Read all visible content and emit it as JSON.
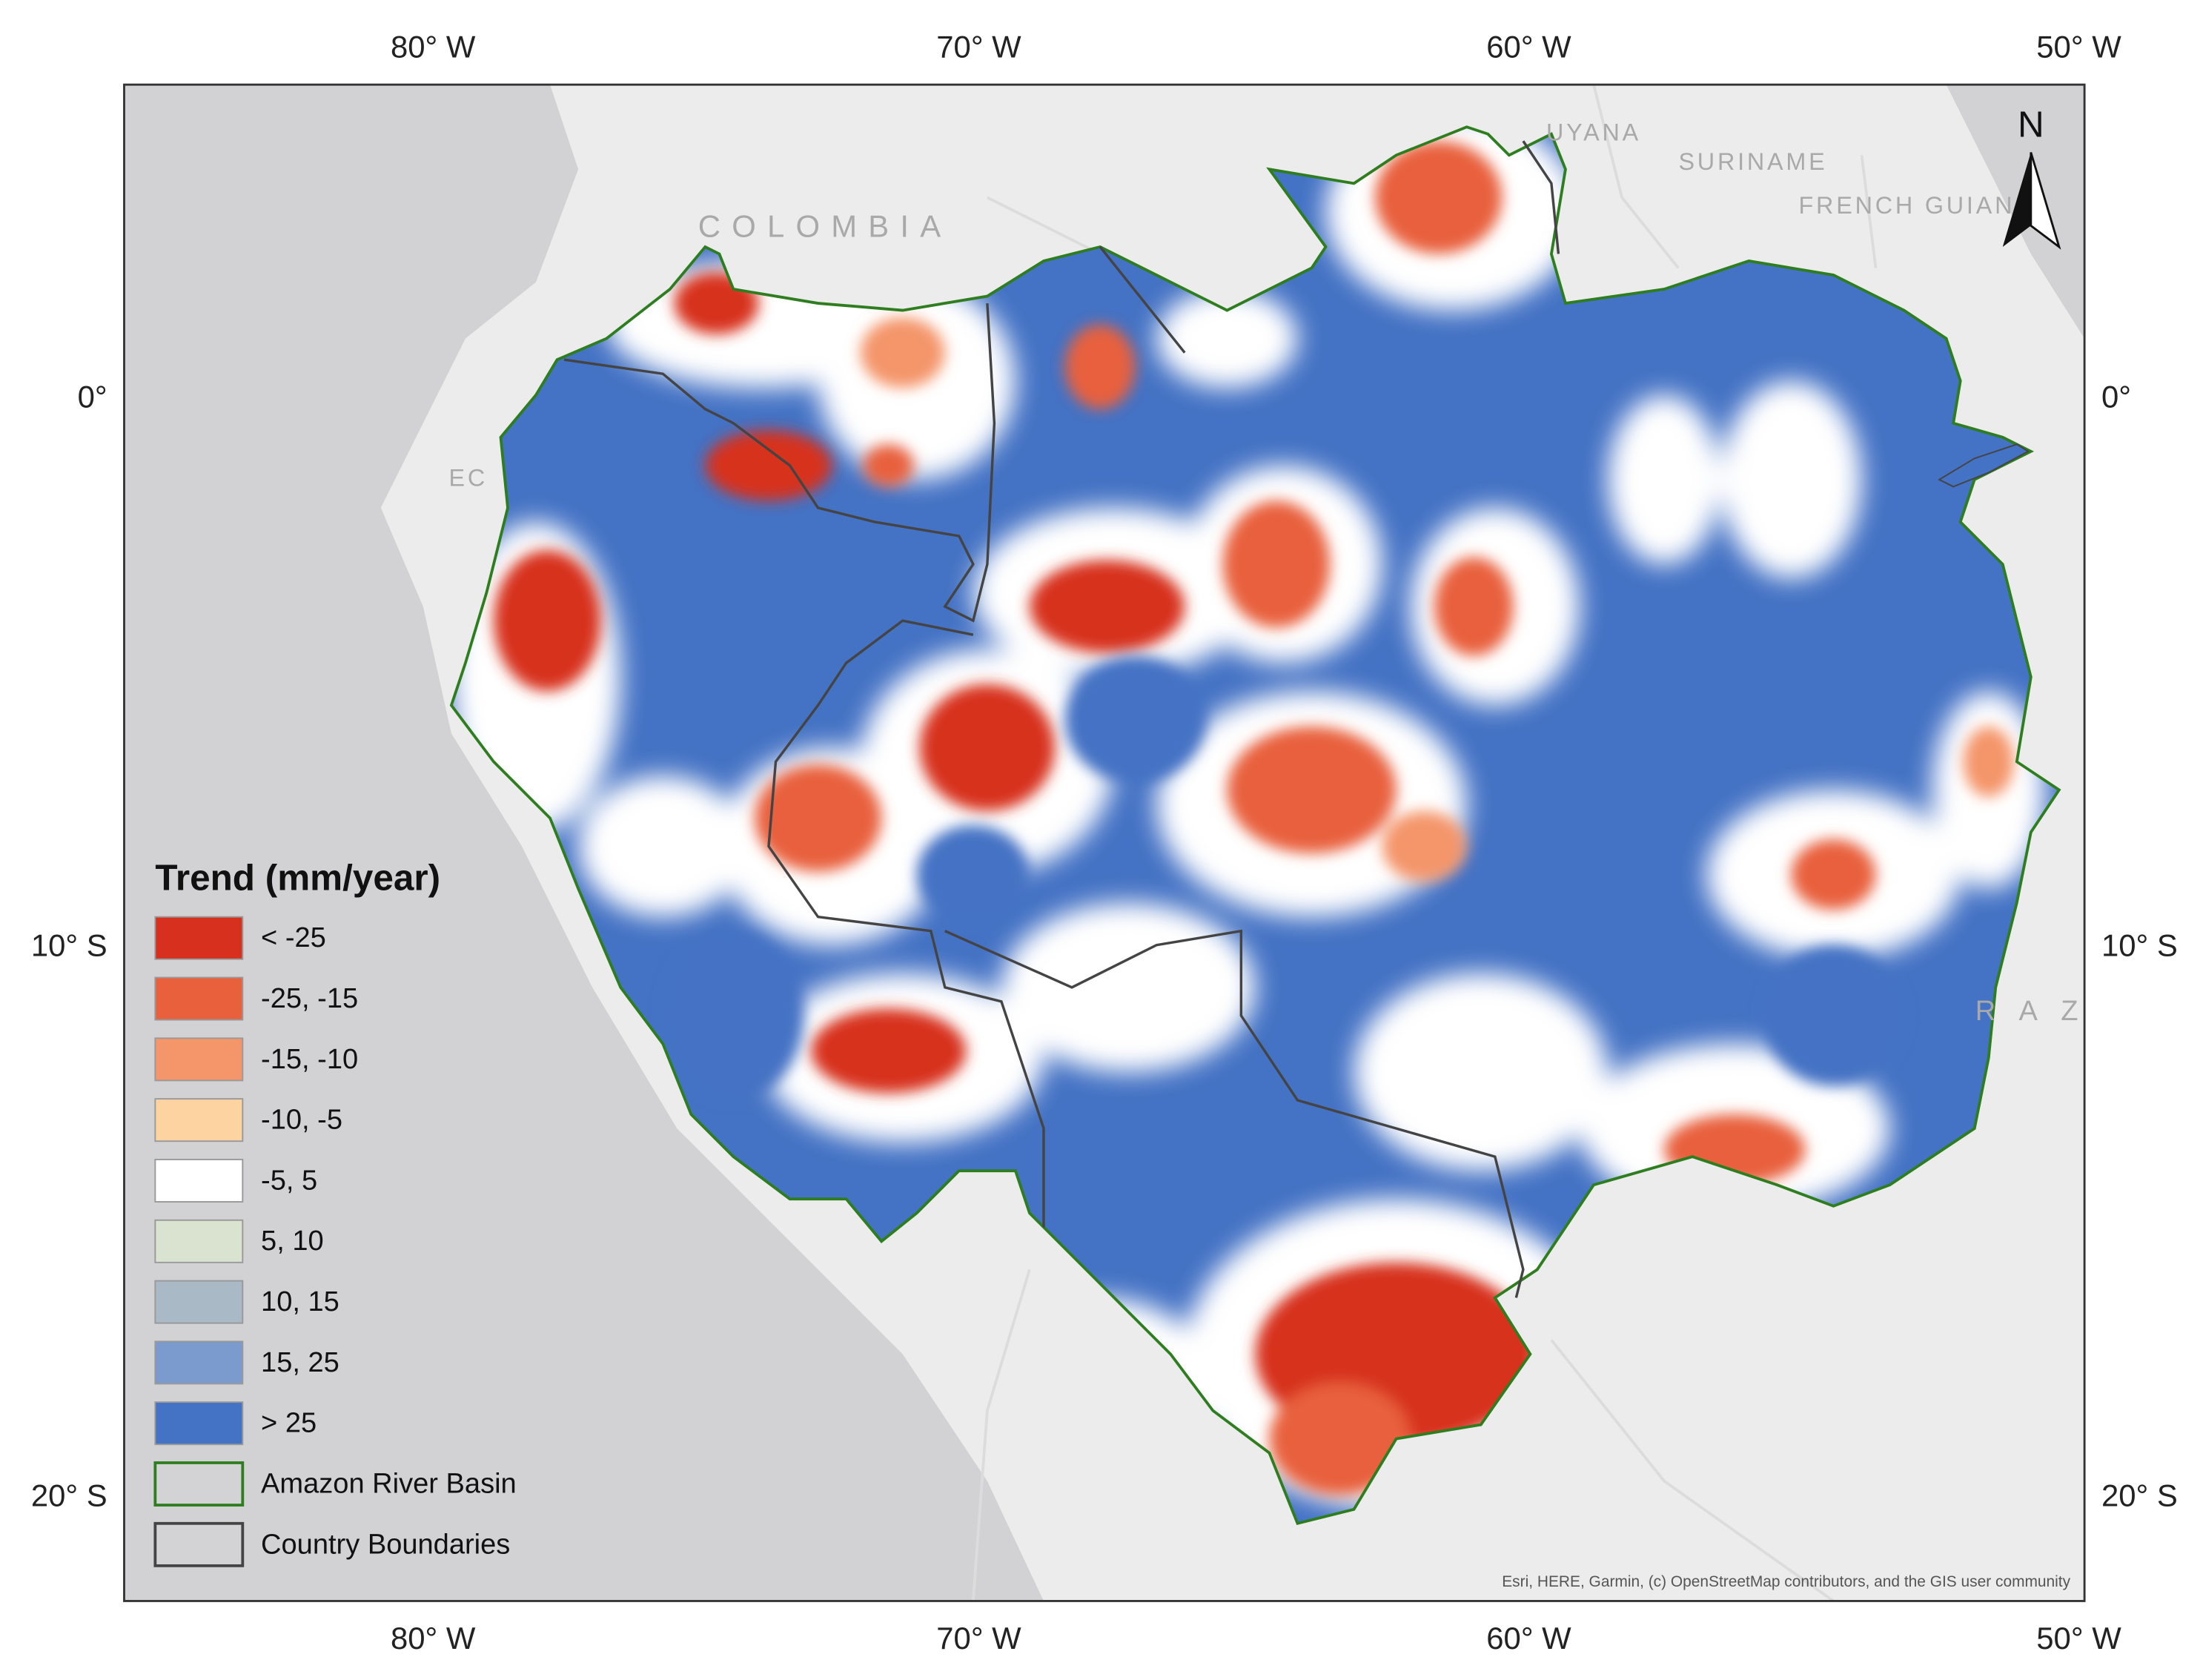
{
  "map": {
    "top_axis_labels": [
      "80° W",
      "70° W",
      "60° W",
      "50° W"
    ],
    "bottom_axis_labels": [
      "80° W",
      "70° W",
      "60° W",
      "50° W"
    ],
    "left_axis_labels": [
      "0°",
      "10° S",
      "20° S"
    ],
    "right_axis_labels": [
      "0°",
      "10° S",
      "20° S"
    ],
    "place_labels": [
      "COLOMBIA",
      "UYANA",
      "SURINAME",
      "FRENCH GUIAN",
      "EC",
      "R A Z"
    ],
    "north_arrow": "N",
    "attribution": "Esri, HERE, Garmin, (c) OpenStreetMap contributors, and the GIS user community"
  },
  "legend": {
    "title": "Trend (mm/year)",
    "items": [
      {
        "label": "< -25",
        "color": "#d7301f"
      },
      {
        "label": "-25, -15",
        "color": "#e8603c"
      },
      {
        "label": "-15, -10",
        "color": "#f4956a"
      },
      {
        "label": "-10, -5",
        "color": "#fdd3a2"
      },
      {
        "label": "-5, 5",
        "color": "#ffffff"
      },
      {
        "label": "5, 10",
        "color": "#d9e3cf"
      },
      {
        "label": "10, 15",
        "color": "#a9b9c6"
      },
      {
        "label": "15, 25",
        "color": "#7b9bcf"
      },
      {
        "label": "> 25",
        "color": "#4472c4"
      },
      {
        "label": "Amazon River Basin",
        "color": "#d3d3d5",
        "stroke": "#2e7d1e"
      },
      {
        "label": "Country Boundaries",
        "color": "#d3d3d5",
        "stroke": "#444444"
      }
    ]
  }
}
